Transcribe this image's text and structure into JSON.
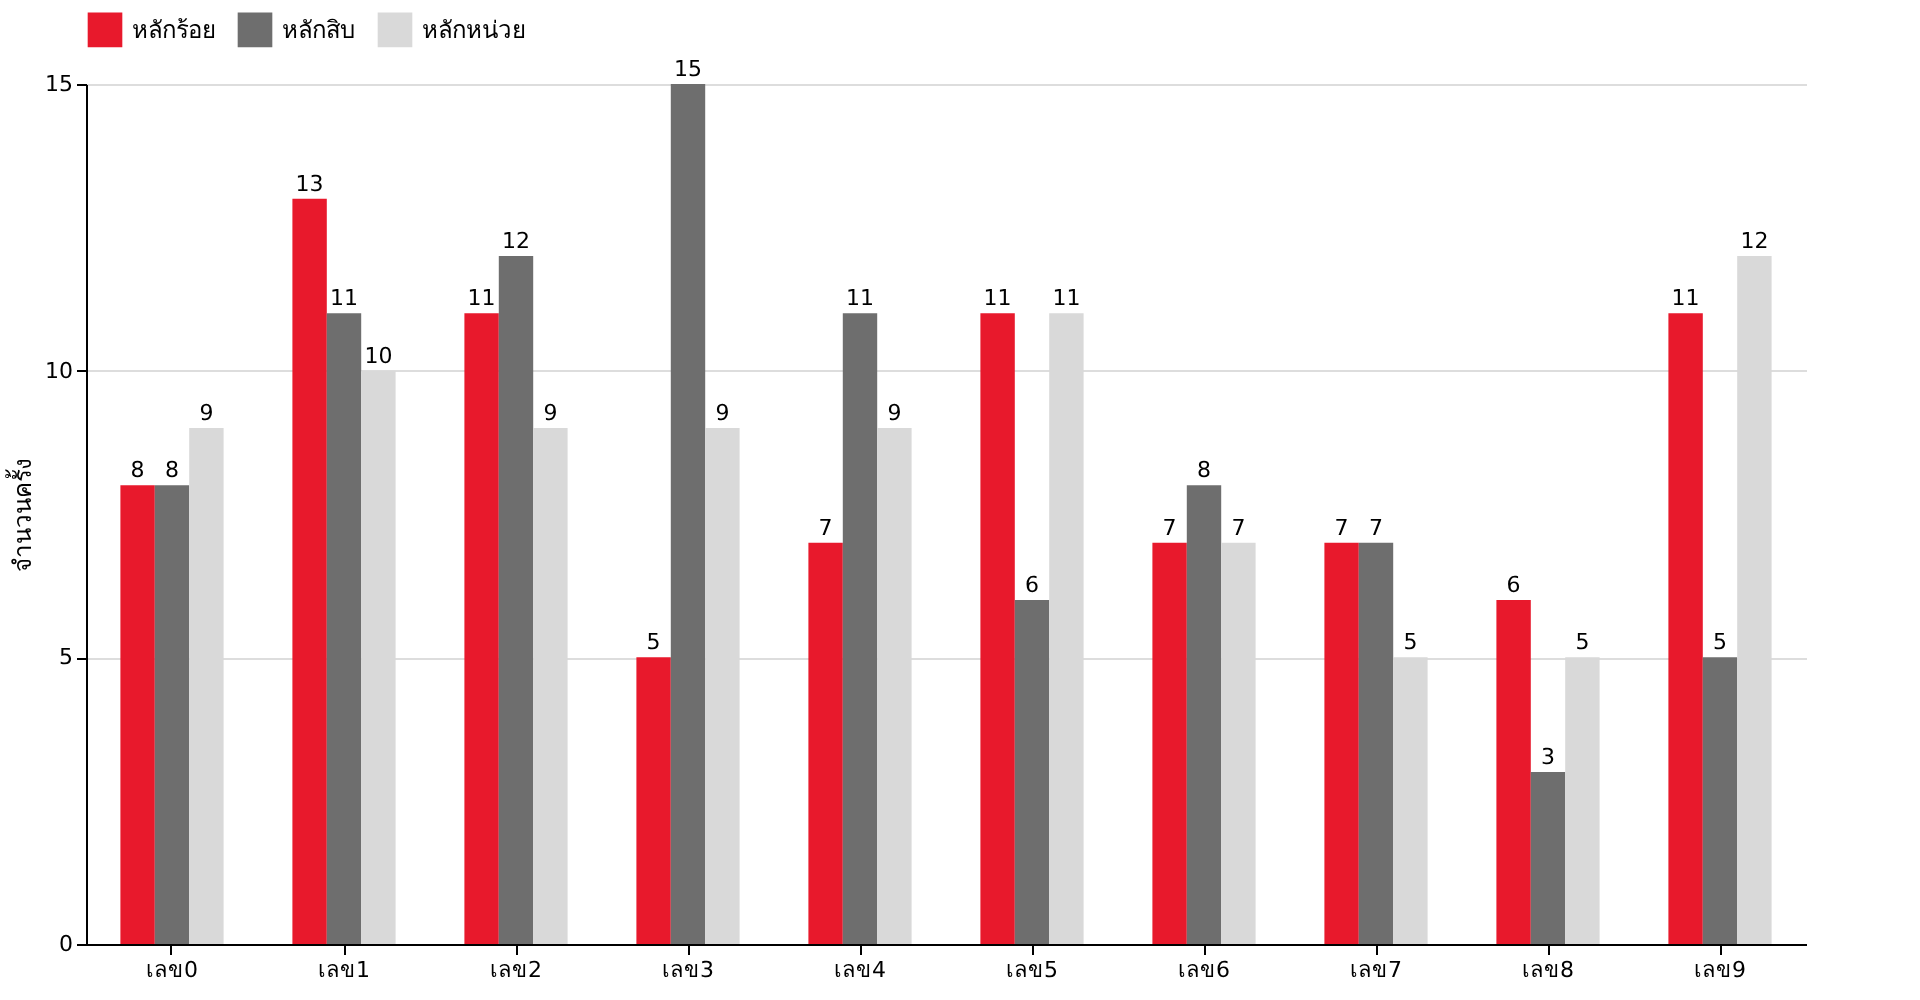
{
  "chart_data": {
    "type": "bar",
    "ylabel": "จำนวนครั้ง",
    "categories": [
      "เลข0",
      "เลข1",
      "เลข2",
      "เลข3",
      "เลข4",
      "เลข5",
      "เลข6",
      "เลข7",
      "เลข8",
      "เลข9"
    ],
    "series": [
      {
        "name": "หลักร้อย",
        "color": "#e8192c",
        "values": [
          8,
          13,
          11,
          5,
          7,
          11,
          7,
          7,
          6,
          11
        ]
      },
      {
        "name": "หลักสิบ",
        "color": "#6e6e6e",
        "values": [
          8,
          11,
          12,
          15,
          11,
          6,
          8,
          7,
          3,
          5
        ]
      },
      {
        "name": "หลักหน่วย",
        "color": "#d9d9d9",
        "values": [
          9,
          10,
          9,
          9,
          9,
          11,
          7,
          5,
          5,
          12
        ]
      }
    ],
    "ylim": [
      0,
      15
    ],
    "yticks": [
      0,
      5,
      10,
      15
    ],
    "grid": "y",
    "legend": "top left",
    "data_labels": true
  }
}
